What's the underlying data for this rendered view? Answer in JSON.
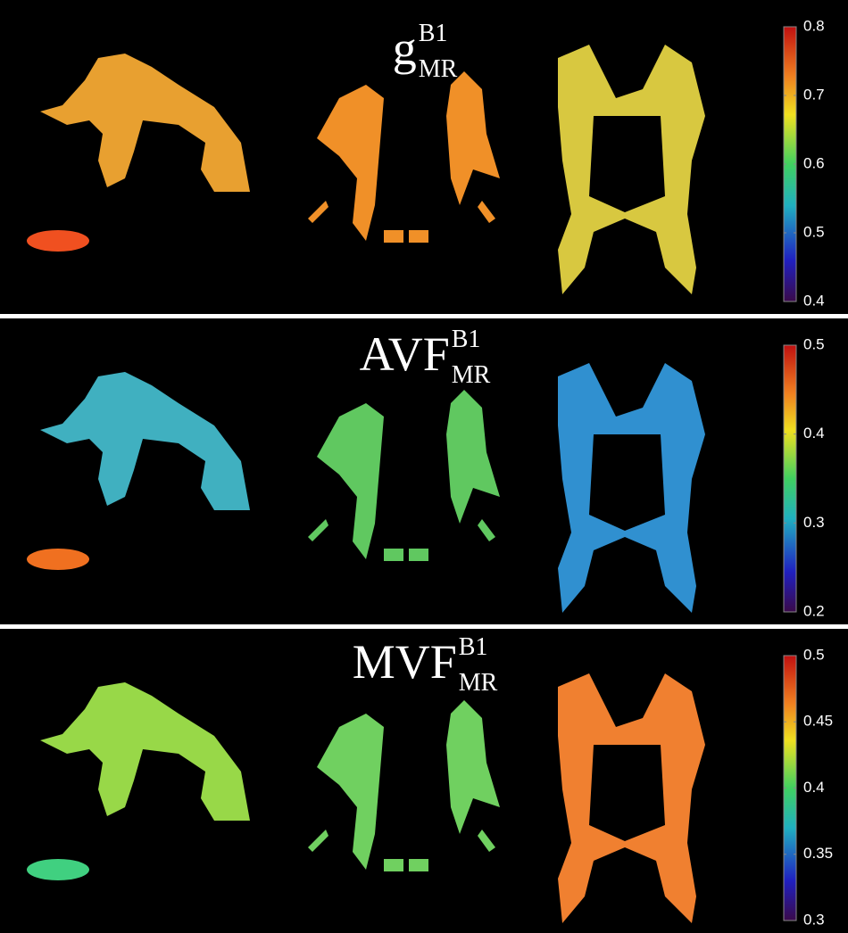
{
  "panels": [
    {
      "title": {
        "base": "g",
        "sup": "B1",
        "sub": "MR"
      },
      "colorbar": {
        "ticks": [
          0.4,
          0.5,
          0.6,
          0.7,
          0.8
        ]
      }
    },
    {
      "title": {
        "base": "AVF",
        "sup": "B1",
        "sub": "MR"
      },
      "colorbar": {
        "ticks": [
          0.2,
          0.3,
          0.4,
          0.5
        ]
      }
    },
    {
      "title": {
        "base": "MVF",
        "sup": "B1",
        "sub": "MR"
      },
      "colorbar": {
        "ticks": [
          0.3,
          0.35,
          0.4,
          0.45,
          0.5
        ]
      }
    }
  ]
}
